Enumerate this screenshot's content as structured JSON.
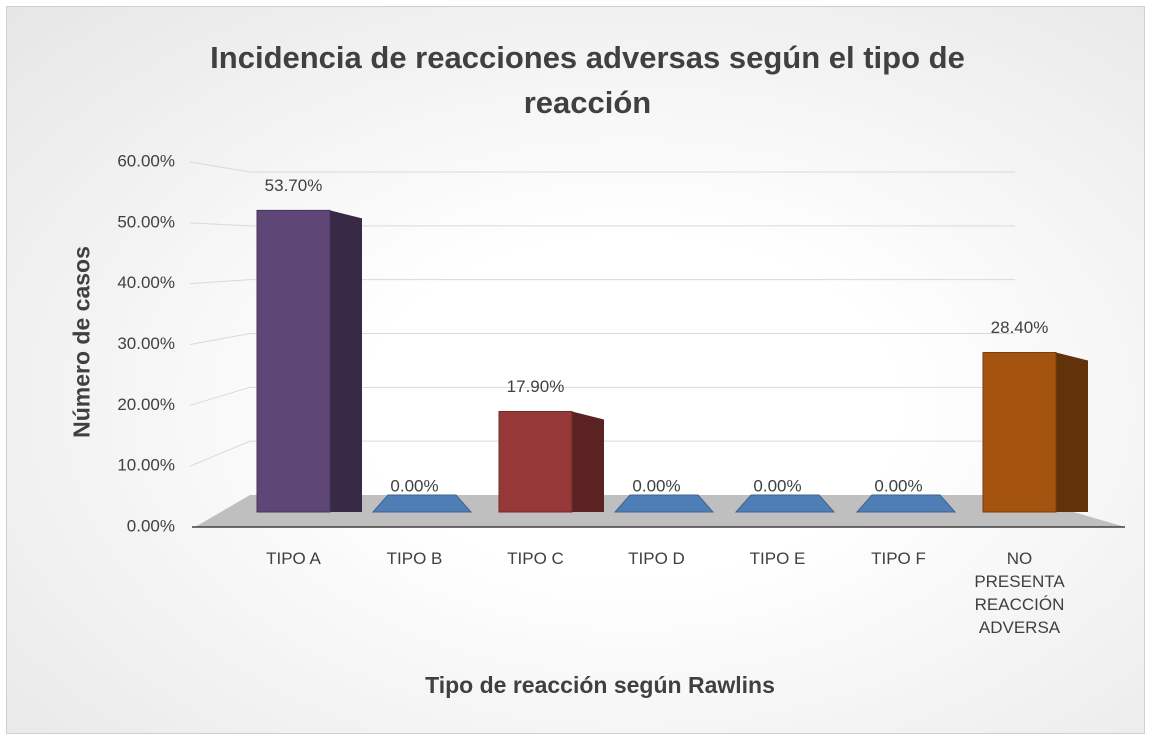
{
  "chart_data": {
    "type": "bar3d",
    "title": "Incidencia de reacciones adversas según el tipo de reacción",
    "xlabel": "Tipo de reacción según Rawlins",
    "ylabel": "Número de casos",
    "categories": [
      "TIPO A",
      "TIPO B",
      "TIPO C",
      "TIPO D",
      "TIPO E",
      "TIPO F",
      "NO PRESENTA REACCIÓN ADVERSA"
    ],
    "values": [
      53.7,
      0,
      17.9,
      0,
      0,
      0,
      28.4
    ],
    "value_labels": [
      "53.70%",
      "0.00%",
      "17.90%",
      "0.00%",
      "0.00%",
      "0.00%",
      "28.40%"
    ],
    "colors": [
      "#5e4677",
      "#4f7db5",
      "#963838",
      "#4f7db5",
      "#4f7db5",
      "#4f7db5",
      "#a4530f"
    ],
    "ylim": [
      0,
      60
    ],
    "yticks": [
      {
        "value": 0,
        "label": "0.00%"
      },
      {
        "value": 10,
        "label": "10.00%"
      },
      {
        "value": 20,
        "label": "20.00%"
      },
      {
        "value": 30,
        "label": "30.00%"
      },
      {
        "value": 40,
        "label": "40.00%"
      },
      {
        "value": 50,
        "label": "50.00%"
      },
      {
        "value": 60,
        "label": "60.00%"
      }
    ],
    "grid": true
  }
}
